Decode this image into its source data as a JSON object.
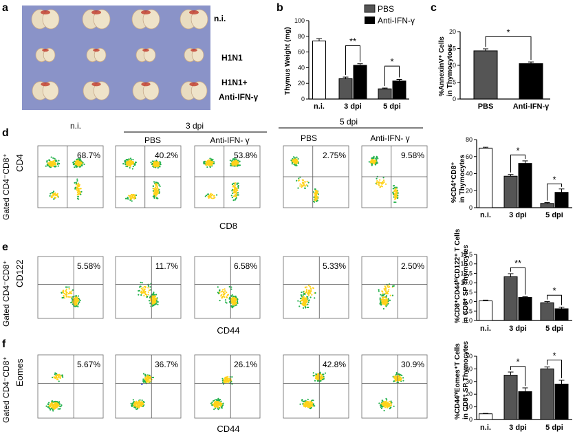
{
  "panels": {
    "a": {
      "letter": "a",
      "labels": [
        "n.i.",
        "H1N1",
        "H1N1+",
        "Anti-IFN-γ"
      ]
    },
    "b": {
      "letter": "b",
      "legend": [
        "PBS",
        "Anti-IFN-γ"
      ]
    },
    "c": {
      "letter": "c"
    },
    "d": {
      "letter": "d",
      "row_label": "Gated CD4⁻CD8⁺",
      "y_axis": "CD4",
      "x_axis": "CD8",
      "headers": {
        "ni": "n.i.",
        "dpi3": "3 dpi",
        "dpi5": "5 dpi",
        "pbs": "PBS",
        "anti": "Anti-IFN- γ"
      },
      "percents": [
        "68.7%",
        "40.2%",
        "53.8%",
        "2.75%",
        "9.58%"
      ]
    },
    "e": {
      "letter": "e",
      "row_label": "Gated CD4⁻CD8⁺",
      "y_axis": "CD122",
      "x_axis": "CD44",
      "percents": [
        "5.58%",
        "11.7%",
        "6.58%",
        "5.33%",
        "2.50%"
      ]
    },
    "f": {
      "letter": "f",
      "row_label": "Gated CD4⁻CD8⁺",
      "y_axis": "Eomes",
      "x_axis": "CD44",
      "percents": [
        "5.67%",
        "36.7%",
        "26.1%",
        "42.8%",
        "30.9%"
      ]
    }
  },
  "colors": {
    "pbs": "#555555",
    "anti": "#000000",
    "ni": "#ffffff",
    "flow_hot": "#ffd21a",
    "flow_mid": "#22b14c",
    "flow_cold": "#1a2fd6"
  },
  "chart_data": [
    {
      "id": "b",
      "type": "bar",
      "ylabel": "Thymus Weight (mg)",
      "ylim": [
        0,
        100
      ],
      "yticks": [
        0,
        20,
        40,
        60,
        80,
        100
      ],
      "groups": [
        "n.i.",
        "3 dpi",
        "5 dpi"
      ],
      "bars": [
        {
          "group": "n.i.",
          "series": "ni",
          "value": 74,
          "err": 3
        },
        {
          "group": "3 dpi",
          "series": "pbs",
          "value": 26,
          "err": 2
        },
        {
          "group": "3 dpi",
          "series": "anti",
          "value": 43,
          "err": 2
        },
        {
          "group": "5 dpi",
          "series": "pbs",
          "value": 13,
          "err": 1
        },
        {
          "group": "5 dpi",
          "series": "anti",
          "value": 23,
          "err": 2
        }
      ],
      "significance": [
        {
          "group": "3 dpi",
          "label": "**",
          "level": 68
        },
        {
          "group": "5 dpi",
          "label": "*",
          "level": 42
        }
      ]
    },
    {
      "id": "c",
      "type": "bar",
      "ylabel": "%AnnexinV⁺ Cells in Thymocytoes",
      "ylim": [
        0,
        20
      ],
      "yticks": [
        0,
        5,
        10,
        15,
        20
      ],
      "groups": [
        "PBS",
        "Anti-IFN-γ"
      ],
      "bars": [
        {
          "group": "PBS",
          "series": "pbs",
          "value": 14.3,
          "err": 0.6
        },
        {
          "group": "Anti-IFN-γ",
          "series": "anti",
          "value": 10.5,
          "err": 0.5
        }
      ],
      "significance": [
        {
          "span": [
            0,
            1
          ],
          "label": "*",
          "level": 18.5
        }
      ]
    },
    {
      "id": "d",
      "type": "bar",
      "ylabel": "%CD4⁺CD8⁺ in Thymocytes",
      "ylim": [
        0,
        80
      ],
      "yticks": [
        0,
        20,
        40,
        60,
        80
      ],
      "groups": [
        "n.i.",
        "3 dpi",
        "5 dpi"
      ],
      "bars": [
        {
          "group": "n.i.",
          "series": "ni",
          "value": 70,
          "err": 1
        },
        {
          "group": "3 dpi",
          "series": "pbs",
          "value": 37,
          "err": 2
        },
        {
          "group": "3 dpi",
          "series": "anti",
          "value": 52,
          "err": 3
        },
        {
          "group": "5 dpi",
          "series": "pbs",
          "value": 5,
          "err": 1
        },
        {
          "group": "5 dpi",
          "series": "anti",
          "value": 18,
          "err": 4
        }
      ],
      "significance": [
        {
          "group": "3 dpi",
          "label": "*",
          "level": 62
        },
        {
          "group": "5 dpi",
          "label": "*",
          "level": 28
        }
      ]
    },
    {
      "id": "e",
      "type": "bar",
      "ylabel": "%CD8⁺CD44ʰⁱCD122⁺ T Cells in CD8⁺ SP Thymocytes",
      "ylim": [
        0,
        17.5
      ],
      "yticks": [
        0,
        2.5,
        5.0,
        7.5,
        10.0,
        12.5,
        15.0,
        17.5
      ],
      "groups": [
        "n.i.",
        "3 dpi",
        "5 dpi"
      ],
      "bars": [
        {
          "group": "n.i.",
          "series": "ni",
          "value": 5.2,
          "err": 0.2
        },
        {
          "group": "3 dpi",
          "series": "pbs",
          "value": 11.6,
          "err": 0.8
        },
        {
          "group": "3 dpi",
          "series": "anti",
          "value": 6.1,
          "err": 0.2
        },
        {
          "group": "5 dpi",
          "series": "pbs",
          "value": 4.7,
          "err": 0.3
        },
        {
          "group": "5 dpi",
          "series": "anti",
          "value": 3.1,
          "err": 0.4
        }
      ],
      "significance": [
        {
          "group": "3 dpi",
          "label": "**",
          "level": 14.0
        },
        {
          "group": "5 dpi",
          "label": "*",
          "level": 6.7
        }
      ]
    },
    {
      "id": "f",
      "type": "bar",
      "ylabel": "%CD44ʰⁱEomes⁺T Cells in CD8⁺ SP Thymocytes",
      "ylim": [
        0,
        50
      ],
      "yticks": [
        0,
        10,
        20,
        30,
        40,
        50
      ],
      "groups": [
        "n.i.",
        "3 dpi",
        "5 dpi"
      ],
      "bars": [
        {
          "group": "n.i.",
          "series": "ni",
          "value": 4.5,
          "err": 0.3
        },
        {
          "group": "3 dpi",
          "series": "pbs",
          "value": 35,
          "err": 2.5
        },
        {
          "group": "3 dpi",
          "series": "anti",
          "value": 22,
          "err": 3
        },
        {
          "group": "5 dpi",
          "series": "pbs",
          "value": 40,
          "err": 1.5
        },
        {
          "group": "5 dpi",
          "series": "anti",
          "value": 28,
          "err": 3
        }
      ],
      "significance": [
        {
          "group": "3 dpi",
          "label": "*",
          "level": 42
        },
        {
          "group": "5 dpi",
          "label": "*",
          "level": 47
        }
      ]
    }
  ]
}
